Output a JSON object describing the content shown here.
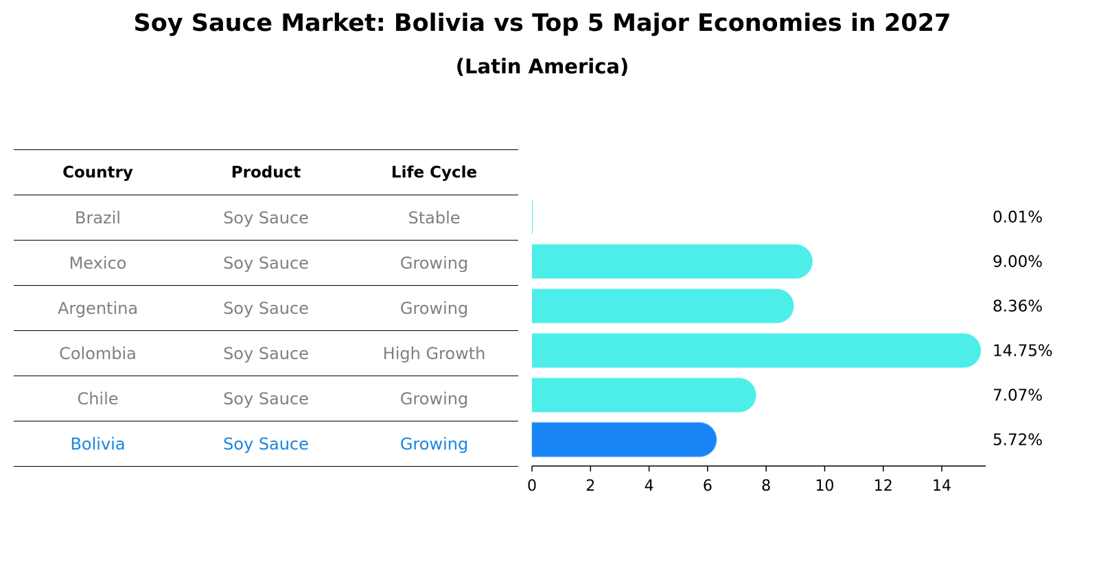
{
  "title": "Soy Sauce Market: Bolivia vs Top 5 Major Economies in 2027",
  "subtitle": "(Latin America)",
  "table": {
    "headers": [
      "Country",
      "Product",
      "Life Cycle"
    ],
    "rows": [
      {
        "country": "Brazil",
        "product": "Soy Sauce",
        "life_cycle": "Stable"
      },
      {
        "country": "Mexico",
        "product": "Soy Sauce",
        "life_cycle": "Growing"
      },
      {
        "country": "Argentina",
        "product": "Soy Sauce",
        "life_cycle": "Growing"
      },
      {
        "country": "Colombia",
        "product": "Soy Sauce",
        "life_cycle": "High Growth"
      },
      {
        "country": "Chile",
        "product": "Soy Sauce",
        "life_cycle": "Growing"
      },
      {
        "country": "Bolivia",
        "product": "Soy Sauce",
        "life_cycle": "Growing"
      }
    ]
  },
  "chart_data": {
    "type": "bar",
    "orientation": "horizontal",
    "categories": [
      "Brazil",
      "Mexico",
      "Argentina",
      "Colombia",
      "Chile",
      "Bolivia"
    ],
    "values": [
      0.01,
      9.0,
      8.36,
      14.75,
      7.07,
      5.72
    ],
    "value_labels": [
      "0.01%",
      "9.00%",
      "8.36%",
      "14.75%",
      "7.07%",
      "5.72%"
    ],
    "xticks": [
      "0",
      "2",
      "4",
      "6",
      "8",
      "10",
      "12",
      "14"
    ],
    "xlim": [
      0,
      15.5
    ],
    "highlight": "Bolivia",
    "colors": {
      "default": "#4deeea",
      "highlight": "#1984f5"
    },
    "grid": false
  }
}
